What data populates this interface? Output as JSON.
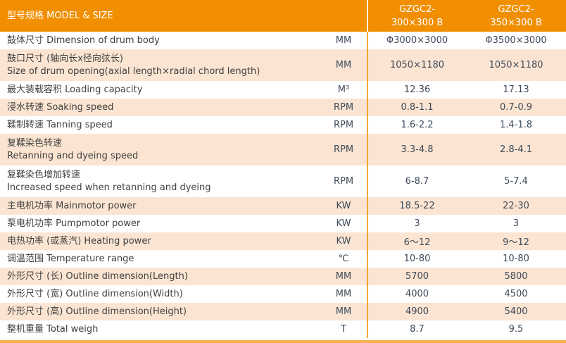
{
  "colors": {
    "header_bg": "#F18F01",
    "row_bg": "#FFFFFF",
    "row_alt_bg": "#FBE5D2",
    "divider": "#F5A733",
    "bottom_bar": "#F8AE52",
    "header_text": "#FFFFFF",
    "label_text": "#404040",
    "value_text": "#3E4A59"
  },
  "header": {
    "title_zh": "型号规格",
    "title_en": "MODEL & SIZE",
    "columns": [
      {
        "model": "GZGC2-",
        "size": "300×300 B"
      },
      {
        "model": "GZGC2-",
        "size": "350×300 B"
      }
    ]
  },
  "rows": [
    {
      "label1": "鼓体尺寸 Dimension of drum body",
      "label2": "",
      "unit": "MM",
      "values": [
        "Φ3000×3000",
        "Φ3500×3000"
      ]
    },
    {
      "label1": "鼓口尺寸 (轴向长x径向弦长)",
      "label2": "Size of drum opening(axial length×radial chord length)",
      "unit": "MM",
      "values": [
        "1050×1180",
        "1050×1180"
      ]
    },
    {
      "label1": "最大装载容积 Loading capacity",
      "label2": "",
      "unit": "M³",
      "values": [
        "12.36",
        "17.13"
      ]
    },
    {
      "label1": "浸水转速 Soaking speed",
      "label2": "",
      "unit": "RPM",
      "values": [
        "0.8-1.1",
        "0.7-0.9"
      ]
    },
    {
      "label1": "鞣制转速 Tanning speed",
      "label2": "",
      "unit": "RPM",
      "values": [
        "1.6-2.2",
        "1.4-1.8"
      ]
    },
    {
      "label1": "复鞣染色转速",
      "label2": "Retanning and dyeing speed",
      "unit": "RPM",
      "values": [
        "3.3-4.8",
        "2.8-4.1"
      ]
    },
    {
      "label1": "复鞣染色增加转速",
      "label2": "Increased speed when retanning and dyeing",
      "unit": "RPM",
      "values": [
        "6-8.7",
        "5-7.4"
      ]
    },
    {
      "label1": "主电机功率 Mainmotor power",
      "label2": "",
      "unit": "KW",
      "values": [
        "18.5-22",
        "22-30"
      ]
    },
    {
      "label1": "泵电机功率 Pumpmotor power",
      "label2": "",
      "unit": "KW",
      "values": [
        "3",
        "3"
      ]
    },
    {
      "label1": "电热功率 (或蒸汽) Heating power",
      "label2": "",
      "unit": "KW",
      "values": [
        "6～12",
        "9～12"
      ]
    },
    {
      "label1": "调温范围 Temperature range",
      "label2": "",
      "unit": "℃",
      "values": [
        "10-80",
        "10-80"
      ]
    },
    {
      "label1": "外形尺寸 (长) Outline dimension(Length)",
      "label2": "",
      "unit": "MM",
      "values": [
        "5700",
        "5800"
      ]
    },
    {
      "label1": "外形尺寸 (宽) Outline dimension(Width)",
      "label2": "",
      "unit": "MM",
      "values": [
        "4000",
        "4500"
      ]
    },
    {
      "label1": "外形尺寸 (高) Outline dimension(Height)",
      "label2": "",
      "unit": "MM",
      "values": [
        "4900",
        "5400"
      ]
    },
    {
      "label1": "整机重量 Total weigh",
      "label2": "",
      "unit": "T",
      "values": [
        "8.7",
        "9.5"
      ]
    }
  ]
}
